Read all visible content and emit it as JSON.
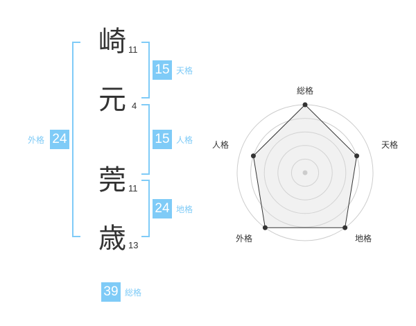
{
  "name": [
    {
      "char": "崎",
      "strokes": "11"
    },
    {
      "char": "元",
      "strokes": "4"
    },
    {
      "char": "莞",
      "strokes": "11"
    },
    {
      "char": "歳",
      "strokes": "13"
    }
  ],
  "kaku": {
    "tenkaku": {
      "label": "天格",
      "value": "15"
    },
    "jinkaku": {
      "label": "人格",
      "value": "15"
    },
    "chikaku": {
      "label": "地格",
      "value": "24"
    },
    "gaikaku": {
      "label": "外格",
      "value": "24"
    },
    "soukaku": {
      "label": "総格",
      "value": "39"
    }
  },
  "accent": "#7fcbf7",
  "chart_data": {
    "type": "radar",
    "axes": [
      "総格",
      "天格",
      "地格",
      "外格",
      "人格"
    ],
    "values": [
      5,
      4,
      5,
      5,
      4
    ],
    "range": [
      0,
      5
    ],
    "rings": 5
  }
}
